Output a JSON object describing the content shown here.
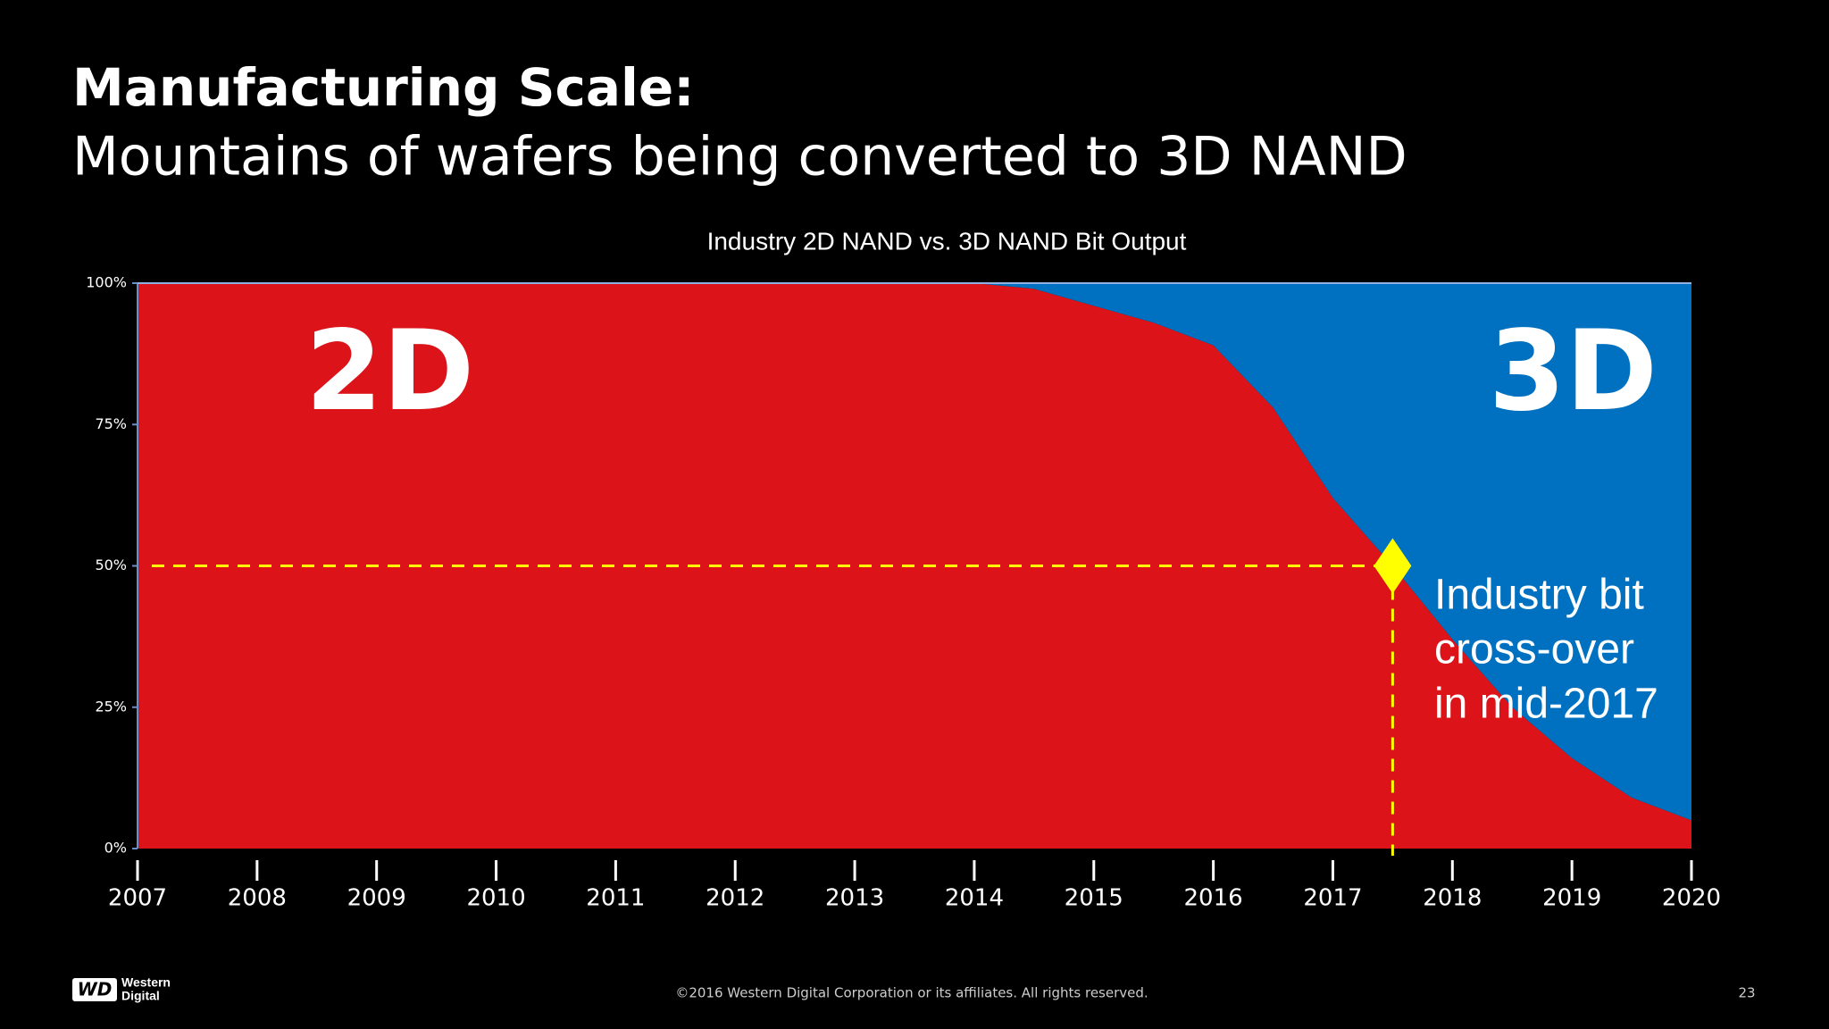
{
  "slide": {
    "title": "Manufacturing Scale:",
    "subtitle": "Mountains of wafers being converted to 3D NAND",
    "footer": "©2016  Western Digital Corporation  or its affiliates.  All rights reserved.",
    "page_number": "23",
    "logo": {
      "mark": "WD",
      "name": [
        "Western",
        "Digital"
      ]
    }
  },
  "chart_data": {
    "type": "stacked-area",
    "title": "Industry 2D NAND vs. 3D NAND Bit Output",
    "x": [
      2007,
      2008,
      2009,
      2010,
      2011,
      2012,
      2013,
      2014,
      2014.5,
      2015,
      2015.5,
      2016,
      2016.5,
      2017,
      2017.5,
      2018,
      2018.5,
      2019,
      2019.5,
      2020
    ],
    "series": [
      {
        "name": "2D",
        "color": "#dc141a",
        "values": [
          100,
          100,
          100,
          100,
          100,
          100,
          100,
          100,
          99,
          96,
          93,
          89,
          78,
          62,
          50,
          37,
          25,
          16,
          9,
          5
        ]
      },
      {
        "name": "3D",
        "color": "#0070c0",
        "values": [
          0,
          0,
          0,
          0,
          0,
          0,
          0,
          0,
          1,
          4,
          7,
          11,
          22,
          38,
          50,
          63,
          75,
          84,
          91,
          95
        ]
      }
    ],
    "xlim": [
      2007,
      2020
    ],
    "xticks": [
      2007,
      2008,
      2009,
      2010,
      2011,
      2012,
      2013,
      2014,
      2015,
      2016,
      2017,
      2018,
      2019,
      2020
    ],
    "ylim": [
      0,
      100
    ],
    "yticks": [
      {
        "value": 0,
        "label": "0%"
      },
      {
        "value": 25,
        "label": "25%"
      },
      {
        "value": 50,
        "label": "50%"
      },
      {
        "value": 75,
        "label": "75%"
      },
      {
        "value": 100,
        "label": "100%"
      }
    ],
    "crossover": {
      "x": 2017.5,
      "y": 50,
      "color": "#ffff00"
    },
    "annotation": [
      "Industry bit",
      "cross-over",
      "in mid-2017"
    ]
  }
}
